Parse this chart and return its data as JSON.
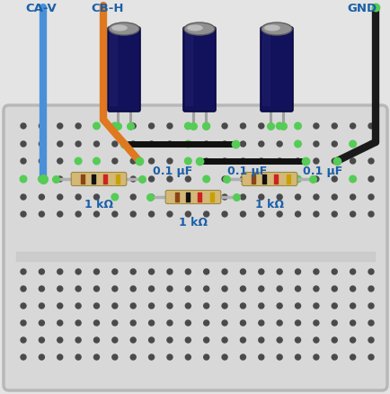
{
  "bg_color": "#e8e8e8",
  "label_CA_V": "CA-V",
  "label_CB_H": "CB-H",
  "label_GND": "GND",
  "label_color": "#1a5fa8",
  "cap_labels": [
    "0.1 μF",
    "0.1 μF",
    "0.1 μF"
  ],
  "res_labels": [
    "1 kΩ",
    "1 kΩ",
    "1 kΩ"
  ],
  "wire_CA_color": "#4a90d9",
  "wire_CB_color": "#e07820",
  "wire_GND_color": "#1a1a1a",
  "cap_body_color": "#12125c",
  "cap_body_color2": "#22226e",
  "cap_top_color": "#909090",
  "cap_top_shine": "#d0d0d0",
  "cap_lead_color": "#a0a0a0",
  "res_body_color": "#d4b878",
  "res_band1_color": "#8B4513",
  "res_band2_color": "#111111",
  "res_band3_color": "#cc2222",
  "res_band4_color": "#c8a000",
  "res_lead_color": "#b0b0b0",
  "hole_color": "#4a4a4a",
  "hole_highlight": "#55cc55",
  "jumper_color": "#111111",
  "bb_color": "#d8d8d8",
  "bb_border": "#b8b8b8",
  "sep_color": "#c8c8c8",
  "outer_bg": "#e4e4e4"
}
